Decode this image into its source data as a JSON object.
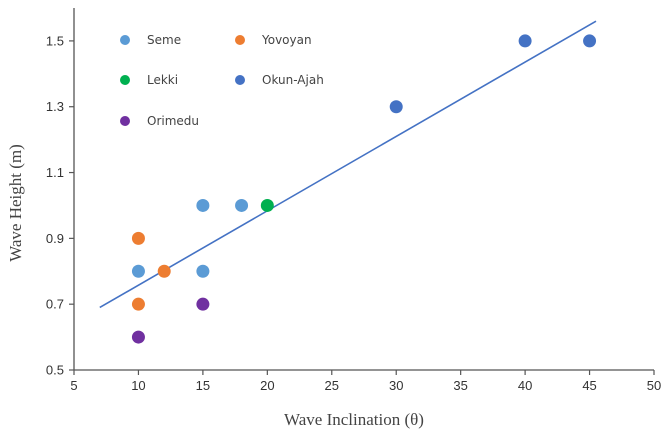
{
  "chart_data": {
    "type": "scatter",
    "xlabel": "Wave Inclination (θ)",
    "ylabel": "Wave Height (m)",
    "xlim": [
      5,
      50
    ],
    "ylim": [
      0.5,
      1.6
    ],
    "xticks": [
      "5",
      "10",
      "15",
      "20",
      "25",
      "30",
      "35",
      "40",
      "45",
      "50"
    ],
    "yticks": [
      "0.5",
      "0.7",
      "0.9",
      "1.1",
      "1.3",
      "1.5"
    ],
    "grid": false,
    "legend_placement": "top-left",
    "series": [
      {
        "name": "Seme",
        "color": "#5B9BD5",
        "points": [
          [
            10,
            0.8
          ],
          [
            15,
            0.8
          ],
          [
            15,
            1.0
          ],
          [
            18,
            1.0
          ]
        ]
      },
      {
        "name": "Yovoyan",
        "color": "#ED7D31",
        "points": [
          [
            10,
            0.9
          ],
          [
            10,
            0.7
          ],
          [
            12,
            0.8
          ]
        ]
      },
      {
        "name": "Lekki",
        "color": "#00B050",
        "points": [
          [
            20,
            1.0
          ]
        ]
      },
      {
        "name": "Okun-Ajah",
        "color": "#4472C4",
        "points": [
          [
            30,
            1.3
          ],
          [
            40,
            1.5
          ],
          [
            45,
            1.5
          ]
        ]
      },
      {
        "name": "Orimedu",
        "color": "#7030A0",
        "points": [
          [
            10,
            0.6
          ],
          [
            15,
            0.7
          ]
        ]
      }
    ],
    "trendline": {
      "color": "#4472C4",
      "from": [
        7,
        0.69
      ],
      "to": [
        45.5,
        1.56
      ]
    }
  }
}
